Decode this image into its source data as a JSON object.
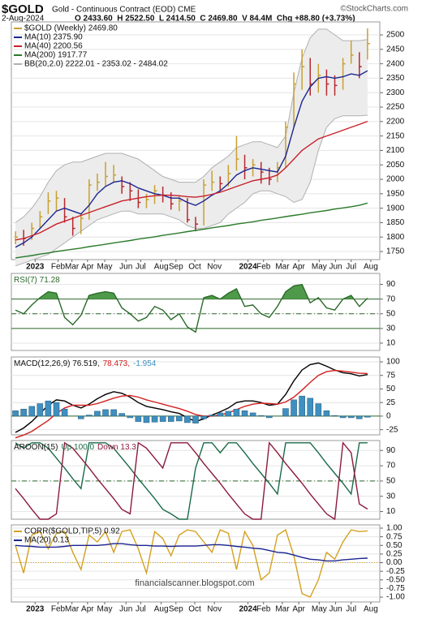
{
  "header": {
    "symbol": "$GOLD",
    "name": "Gold - Continuous Contract (EOD) CME",
    "source": "©StockCharts.com",
    "date": "2-Aug-2024",
    "quote": "O 2433.60  H 2522.50  L 2414.50  C 2469.80  V 84.4M  Chg +88.80 (+3.73%)"
  },
  "chart_data": [
    {
      "type": "ohlc",
      "name": "$GOLD (Weekly) 2469.80",
      "up_color": "#c9a030",
      "down_color": "#b8282e",
      "legend": "stacked",
      "high": [
        1820,
        1825,
        1850,
        1890,
        1955,
        1960,
        1935,
        1870,
        1880,
        2000,
        2020,
        2060,
        2050,
        2010,
        1990,
        1965,
        1950,
        1980,
        1975,
        1955,
        1945,
        1935,
        1870,
        2000,
        2030,
        2010,
        2050,
        2150,
        2085,
        2070,
        2060,
        2040,
        2060,
        2200,
        2370,
        2450,
        2420,
        2400,
        2380,
        2360,
        2420,
        2480,
        2440,
        2522.5
      ],
      "low": [
        1775,
        1770,
        1790,
        1830,
        1880,
        1890,
        1850,
        1805,
        1810,
        1860,
        1960,
        1975,
        1990,
        1950,
        1925,
        1900,
        1900,
        1915,
        1920,
        1895,
        1890,
        1850,
        1820,
        1840,
        1960,
        1960,
        1975,
        2030,
        2000,
        2010,
        1985,
        1980,
        1990,
        2040,
        2180,
        2310,
        2290,
        2300,
        2290,
        2290,
        2310,
        2400,
        2350,
        2414.5
      ],
      "close": [
        1800,
        1795,
        1830,
        1870,
        1925,
        1935,
        1870,
        1830,
        1865,
        1980,
        1990,
        2010,
        2015,
        1975,
        1960,
        1920,
        1930,
        1960,
        1945,
        1915,
        1925,
        1860,
        1845,
        1980,
        1990,
        1985,
        2020,
        2070,
        2040,
        2050,
        2025,
        2000,
        2040,
        2180,
        2330,
        2390,
        2330,
        2360,
        2330,
        2325,
        2400,
        2430,
        2390,
        2469.8
      ],
      "series": [
        {
          "name": "MA(10) 2375.90",
          "color": "#1a2590",
          "values": [
            1765,
            1780,
            1800,
            1830,
            1860,
            1890,
            1900,
            1890,
            1880,
            1910,
            1950,
            1975,
            1990,
            1995,
            1985,
            1970,
            1960,
            1950,
            1945,
            1935,
            1935,
            1920,
            1910,
            1925,
            1945,
            1960,
            1985,
            2015,
            2030,
            2040,
            2035,
            2030,
            2025,
            2080,
            2180,
            2270,
            2320,
            2350,
            2355,
            2350,
            2355,
            2365,
            2360,
            2375.9
          ]
        },
        {
          "name": "MA(40) 2200.56",
          "color": "#c8202a",
          "values": [
            1790,
            1795,
            1805,
            1815,
            1830,
            1845,
            1855,
            1865,
            1875,
            1885,
            1895,
            1905,
            1915,
            1925,
            1930,
            1935,
            1940,
            1943,
            1945,
            1945,
            1943,
            1940,
            1938,
            1942,
            1948,
            1955,
            1965,
            1975,
            1985,
            1995,
            2000,
            2005,
            2015,
            2040,
            2070,
            2100,
            2120,
            2140,
            2150,
            2160,
            2170,
            2180,
            2190,
            2200.56
          ]
        },
        {
          "name": "MA(200) 1917.77",
          "color": "#2a7a2a",
          "values": [
            1728,
            1732,
            1736,
            1741,
            1745,
            1750,
            1754,
            1758,
            1762,
            1767,
            1771,
            1775,
            1780,
            1784,
            1788,
            1793,
            1797,
            1801,
            1806,
            1810,
            1814,
            1819,
            1823,
            1827,
            1832,
            1836,
            1840,
            1845,
            1849,
            1853,
            1858,
            1862,
            1866,
            1871,
            1875,
            1879,
            1884,
            1888,
            1892,
            1897,
            1901,
            1905,
            1910,
            1917.77
          ]
        }
      ],
      "band": {
        "name": "BB(20,2.0) 2222.01 - 2353.02 - 2484.02",
        "color": "#b0b0b0",
        "upper": [
          1850,
          1870,
          1900,
          1940,
          1990,
          2030,
          2050,
          2060,
          2060,
          2070,
          2080,
          2090,
          2090,
          2090,
          2080,
          2070,
          2050,
          2030,
          2010,
          2000,
          1990,
          1990,
          1990,
          2010,
          2040,
          2060,
          2080,
          2110,
          2120,
          2130,
          2130,
          2120,
          2110,
          2150,
          2300,
          2420,
          2490,
          2520,
          2520,
          2500,
          2480,
          2480,
          2480,
          2484.02
        ],
        "lower": [
          1700,
          1710,
          1720,
          1730,
          1740,
          1760,
          1780,
          1800,
          1820,
          1840,
          1860,
          1870,
          1880,
          1890,
          1890,
          1880,
          1880,
          1880,
          1880,
          1870,
          1860,
          1840,
          1830,
          1830,
          1840,
          1850,
          1880,
          1900,
          1920,
          1950,
          1960,
          1960,
          1950,
          1940,
          1920,
          1930,
          1990,
          2100,
          2180,
          2210,
          2220,
          2220,
          2220,
          2222.01
        ]
      },
      "xlim": [
        -0.5,
        44.5
      ],
      "ylim": [
        1722,
        2545
      ],
      "yticks": [
        1750,
        1800,
        1850,
        1900,
        1950,
        2000,
        2050,
        2100,
        2150,
        2200,
        2250,
        2300,
        2350,
        2400,
        2450,
        2500
      ],
      "xticks": [
        {
          "value": 2.4,
          "label": "2023"
        },
        {
          "value": 5.2,
          "label": "Feb"
        },
        {
          "value": 6.9,
          "label": "Mar"
        },
        {
          "value": 8.8,
          "label": "Apr"
        },
        {
          "value": 10.9,
          "label": "May"
        },
        {
          "value": 13.5,
          "label": "Jun"
        },
        {
          "value": 15.3,
          "label": "Jul"
        },
        {
          "value": 17.8,
          "label": "Aug"
        },
        {
          "value": 19.6,
          "label": "Sep"
        },
        {
          "value": 21.9,
          "label": "Oct"
        },
        {
          "value": 24.3,
          "label": "Nov"
        },
        {
          "value": 28.4,
          "label": "2024"
        },
        {
          "value": 30.3,
          "label": "Feb"
        },
        {
          "value": 32.6,
          "label": "Mar"
        },
        {
          "value": 34.6,
          "label": "Apr"
        },
        {
          "value": 37.1,
          "label": "May"
        },
        {
          "value": 39.1,
          "label": "Jun"
        },
        {
          "value": 41,
          "label": "Jul"
        },
        {
          "value": 43.4,
          "label": "Aug"
        }
      ]
    },
    {
      "type": "line",
      "legend": "inline",
      "xlim": [
        -0.5,
        44.5
      ],
      "ylim": [
        0,
        105
      ],
      "yticks": [
        90,
        70,
        50,
        30,
        10
      ],
      "ref_lines": [
        {
          "value": 70,
          "style": "solid"
        },
        {
          "value": 50,
          "style": "dashdot"
        },
        {
          "value": 30,
          "style": "solid"
        }
      ],
      "series": [
        {
          "name": "RSI(7) 71.28",
          "color": "#2a6a2a",
          "fill_above": 70,
          "fill_color": "#4f9a4a",
          "values": [
            55,
            50,
            62,
            72,
            80,
            78,
            45,
            35,
            48,
            75,
            78,
            80,
            78,
            58,
            50,
            40,
            45,
            60,
            55,
            42,
            50,
            32,
            25,
            72,
            75,
            70,
            78,
            84,
            60,
            62,
            50,
            45,
            60,
            80,
            88,
            90,
            65,
            72,
            58,
            55,
            70,
            75,
            60,
            71.28
          ]
        }
      ]
    },
    {
      "type": "line",
      "legend": "inline",
      "xlim": [
        -0.5,
        44.5
      ],
      "ylim": [
        -34.5,
        109
      ],
      "yticks": [
        100,
        75,
        50,
        25,
        0,
        -25
      ],
      "ref_lines": [
        {
          "value": 0,
          "style": "solid"
        }
      ],
      "series": [
        {
          "name": "MACD(12,26,9) 76.519,",
          "color": "#000000",
          "values": [
            -30,
            -22,
            -10,
            5,
            20,
            30,
            28,
            20,
            15,
            22,
            32,
            40,
            45,
            42,
            35,
            25,
            18,
            15,
            12,
            8,
            5,
            -3,
            -10,
            -5,
            2,
            8,
            15,
            25,
            28,
            28,
            25,
            20,
            22,
            40,
            65,
            85,
            95,
            98,
            92,
            85,
            80,
            78,
            74,
            76.519
          ]
        },
        {
          "name": "78.473,",
          "color": "#d42020",
          "values": [
            -40,
            -35,
            -28,
            -18,
            -8,
            5,
            15,
            20,
            20,
            20,
            23,
            28,
            33,
            37,
            38,
            35,
            30,
            26,
            22,
            18,
            14,
            9,
            3,
            0,
            0,
            2,
            6,
            12,
            18,
            22,
            24,
            23,
            22,
            26,
            35,
            48,
            62,
            75,
            82,
            84,
            83,
            81,
            79,
            78.473
          ]
        },
        {
          "name": "-1.954",
          "color": "#3f8fc0",
          "kind": "bar",
          "values": [
            10,
            13,
            18,
            23,
            28,
            25,
            13,
            0,
            -5,
            2,
            9,
            12,
            12,
            5,
            -3,
            -10,
            -12,
            -11,
            -10,
            -10,
            -9,
            -12,
            -13,
            -5,
            2,
            6,
            9,
            13,
            10,
            6,
            1,
            -3,
            0,
            14,
            30,
            37,
            33,
            23,
            10,
            1,
            -3,
            -3,
            -5,
            -1.954
          ]
        }
      ]
    },
    {
      "type": "line",
      "legend": "inline",
      "label": "AROON(15)",
      "xlim": [
        -0.5,
        44.5
      ],
      "ylim": [
        0,
        103
      ],
      "yticks": [
        90,
        70,
        50,
        30,
        10
      ],
      "ref_lines": [
        {
          "value": 50,
          "style": "dashdot"
        }
      ],
      "series": [
        {
          "name": "Up 100.0",
          "color": "#1a6a48",
          "values": [
            100,
            93,
            100,
            100,
            93,
            80,
            67,
            53,
            40,
            100,
            100,
            100,
            93,
            80,
            67,
            53,
            40,
            27,
            13,
            7,
            0,
            0,
            67,
            100,
            100,
            87,
            100,
            100,
            87,
            73,
            60,
            47,
            33,
            100,
            100,
            100,
            100,
            87,
            73,
            60,
            47,
            33,
            100,
            100
          ]
        },
        {
          "name": "Down 13.3",
          "color": "#8a1a3c",
          "values": [
            40,
            27,
            13,
            0,
            0,
            7,
            100,
            93,
            80,
            67,
            53,
            40,
            27,
            13,
            7,
            100,
            93,
            80,
            67,
            100,
            100,
            100,
            87,
            73,
            60,
            47,
            33,
            20,
            7,
            0,
            0,
            100,
            87,
            73,
            60,
            47,
            33,
            20,
            7,
            0,
            100,
            87,
            20,
            13.3
          ]
        }
      ]
    },
    {
      "type": "line",
      "legend": "stacked",
      "annotation": "financialscanner.blogspot.com",
      "xlim": [
        -0.5,
        44.5
      ],
      "ylim": [
        -1.14,
        1.094
      ],
      "yticks": [
        {
          "value": 1,
          "label": "1.00"
        },
        0.75,
        {
          "value": 0.5,
          "label": "0.50"
        },
        0.25,
        {
          "value": 0,
          "label": "0.00"
        },
        -0.25,
        {
          "value": -0.5,
          "label": "-0.50"
        },
        -0.75,
        {
          "value": -1,
          "label": "-1.00"
        }
      ],
      "ref_lines": [
        {
          "value": 0,
          "style": "dotted"
        }
      ],
      "series": [
        {
          "name": "CORR($GOLD,TIP,5) 0.92",
          "color": "#d4a020",
          "values": [
            0.5,
            -0.3,
            0.8,
            0.9,
            0.4,
            0.85,
            0.9,
            0.3,
            -0.2,
            0.8,
            0.6,
            0.9,
            0.3,
            0.9,
            0.95,
            0.4,
            -0.3,
            0.9,
            0.7,
            0.2,
            0.8,
            0.95,
            0.9,
            0.6,
            0.3,
            0.95,
            0.85,
            -0.2,
            0.9,
            0.5,
            -0.5,
            -0.3,
            0.8,
            0.95,
            0.2,
            -0.9,
            -1.0,
            -0.5,
            0.3,
            0.1,
            0.6,
            0.95,
            0.9,
            0.92
          ]
        },
        {
          "name": "MA(20) 0.13",
          "color": "#1a2590",
          "values": [
            0.5,
            0.48,
            0.47,
            0.45,
            0.45,
            0.45,
            0.47,
            0.5,
            0.5,
            0.5,
            0.5,
            0.52,
            0.55,
            0.55,
            0.52,
            0.5,
            0.5,
            0.48,
            0.48,
            0.47,
            0.48,
            0.48,
            0.48,
            0.5,
            0.52,
            0.52,
            0.5,
            0.47,
            0.45,
            0.42,
            0.4,
            0.35,
            0.3,
            0.28,
            0.22,
            0.15,
            0.1,
            0.08,
            0.05,
            0.05,
            0.08,
            0.1,
            0.12,
            0.13
          ]
        }
      ],
      "xticks": [
        {
          "value": 2.4,
          "label": "2023"
        },
        {
          "value": 5.2,
          "label": "Feb"
        },
        {
          "value": 6.9,
          "label": "Mar"
        },
        {
          "value": 8.8,
          "label": "Apr"
        },
        {
          "value": 10.9,
          "label": "May"
        },
        {
          "value": 13.5,
          "label": "Jun"
        },
        {
          "value": 15.3,
          "label": "Jul"
        },
        {
          "value": 17.8,
          "label": "Aug"
        },
        {
          "value": 19.6,
          "label": "Sep"
        },
        {
          "value": 21.9,
          "label": "Oct"
        },
        {
          "value": 24.3,
          "label": "Nov"
        },
        {
          "value": 28.4,
          "label": "2024"
        },
        {
          "value": 30.3,
          "label": "Feb"
        },
        {
          "value": 32.6,
          "label": "Mar"
        },
        {
          "value": 34.6,
          "label": "Apr"
        },
        {
          "value": 37.1,
          "label": "May"
        },
        {
          "value": 39.1,
          "label": "Jun"
        },
        {
          "value": 41,
          "label": "Jul"
        },
        {
          "value": 43.4,
          "label": "Aug"
        }
      ]
    }
  ]
}
